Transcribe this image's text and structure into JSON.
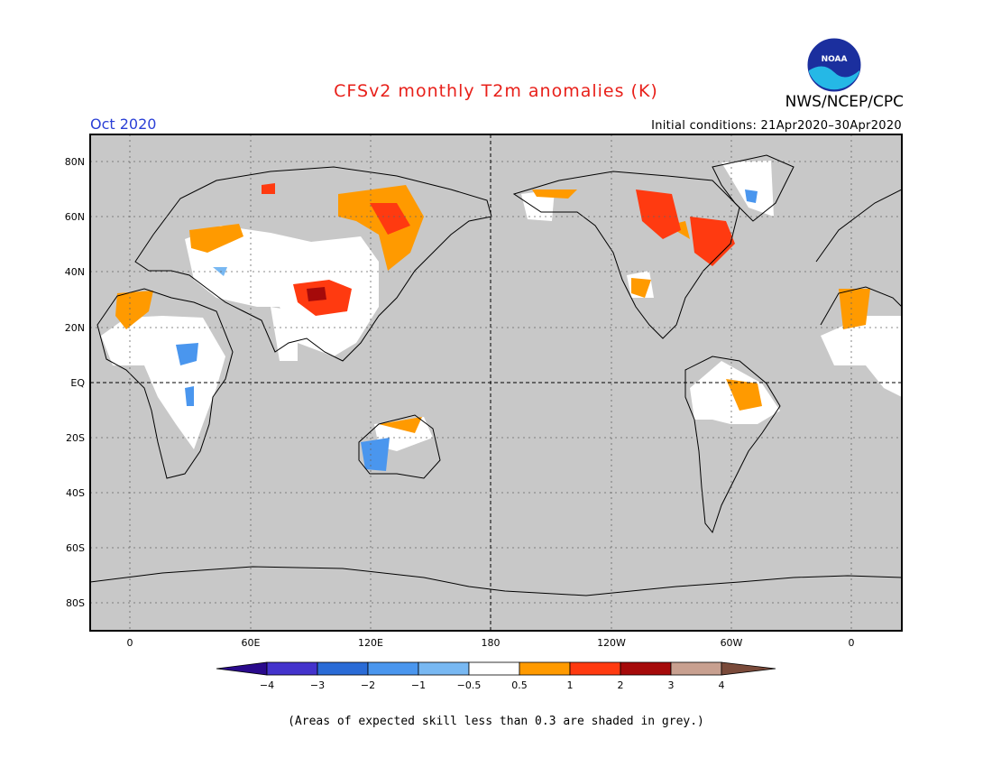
{
  "header": {
    "title": "CFSv2 monthly T2m anomalies (K)",
    "month": "Oct 2020",
    "initial_conditions": "Initial conditions: 21Apr2020–30Apr2020",
    "agency": "NWS/NCEP/CPC",
    "logo_text": "NOAA"
  },
  "map": {
    "projection": "cylindrical equidistant, centered 180",
    "lat_labels": [
      "80N",
      "60N",
      "40N",
      "20N",
      "EQ",
      "20S",
      "40S",
      "60S",
      "80S"
    ],
    "lon_labels": [
      "0",
      "60E",
      "120E",
      "180",
      "120W",
      "60W",
      "0"
    ],
    "background_color": "#c8c8c8"
  },
  "colorbar": {
    "ticks": [
      "−4",
      "−3",
      "−2",
      "−1",
      "−0.5",
      "0.5",
      "1",
      "2",
      "3",
      "4"
    ],
    "colors": [
      "#2a0a8c",
      "#4433cc",
      "#2a6bd6",
      "#4a96ee",
      "#78b8f2",
      "#ffffff",
      "#ff9a00",
      "#ff3a10",
      "#a50a0a",
      "#c8a090",
      "#7a4a3a"
    ]
  },
  "footnote": "(Areas of expected skill less than 0.3 are shaded in grey.)"
}
